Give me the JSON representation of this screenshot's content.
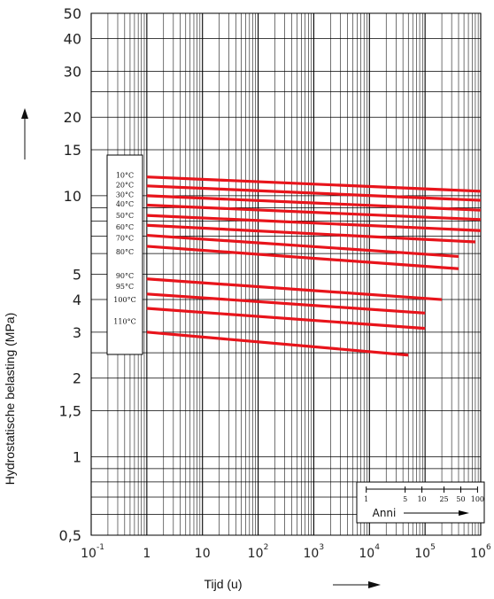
{
  "chart_data": {
    "type": "line",
    "xlabel": "Tijd (u)",
    "ylabel": "Hydrostatische belasting (MPa)",
    "xscale": "log",
    "yscale": "log",
    "xlim": [
      0.1,
      1000000
    ],
    "ylim": [
      0.5,
      50
    ],
    "grid": true,
    "x_ticks": [
      {
        "base": "10",
        "exp": "-1",
        "value": 0.1
      },
      {
        "base": "1",
        "exp": "",
        "value": 1
      },
      {
        "base": "10",
        "exp": "",
        "value": 10
      },
      {
        "base": "10",
        "exp": "2",
        "value": 100
      },
      {
        "base": "10",
        "exp": "3",
        "value": 1000
      },
      {
        "base": "10",
        "exp": "4",
        "value": 10000
      },
      {
        "base": "10",
        "exp": "5",
        "value": 100000
      },
      {
        "base": "10",
        "exp": "6",
        "value": 1000000
      }
    ],
    "y_ticks": [
      {
        "label": "50",
        "value": 50
      },
      {
        "label": "40",
        "value": 40
      },
      {
        "label": "30",
        "value": 30
      },
      {
        "label": "20",
        "value": 20
      },
      {
        "label": "15",
        "value": 15
      },
      {
        "label": "10",
        "value": 10
      },
      {
        "label": "5",
        "value": 5
      },
      {
        "label": "4",
        "value": 4
      },
      {
        "label": "3",
        "value": 3
      },
      {
        "label": "2",
        "value": 2
      },
      {
        "label": "1,5",
        "value": 1.5
      },
      {
        "label": "1",
        "value": 1
      },
      {
        "label": "0,5",
        "value": 0.5
      }
    ],
    "series_color": "#e8141b",
    "series": [
      {
        "name": "10°C",
        "x": [
          1,
          1000000
        ],
        "y": [
          11.8,
          10.4
        ]
      },
      {
        "name": "20°C",
        "x": [
          1,
          1000000
        ],
        "y": [
          10.9,
          9.6
        ]
      },
      {
        "name": "30°C",
        "x": [
          1,
          1000000
        ],
        "y": [
          10.0,
          8.8
        ]
      },
      {
        "name": "40°C",
        "x": [
          1,
          1000000
        ],
        "y": [
          9.2,
          8.1
        ]
      },
      {
        "name": "50°C",
        "x": [
          1,
          1000000
        ],
        "y": [
          8.4,
          7.35
        ]
      },
      {
        "name": "60°C",
        "x": [
          1,
          800000
        ],
        "y": [
          7.7,
          6.65
        ]
      },
      {
        "name": "70°C",
        "x": [
          1,
          400000
        ],
        "y": [
          7.05,
          5.85
        ]
      },
      {
        "name": "80°C",
        "x": [
          1,
          400000
        ],
        "y": [
          6.4,
          5.25
        ]
      },
      {
        "name": "90°C",
        "x": [
          1,
          200000
        ],
        "y": [
          4.8,
          4.0
        ]
      },
      {
        "name": "95°C",
        "x": [
          1,
          100000
        ],
        "y": [
          4.2,
          3.55
        ]
      },
      {
        "name": "100°C",
        "x": [
          1,
          100000
        ],
        "y": [
          3.7,
          3.1
        ]
      },
      {
        "name": "110°C",
        "x": [
          1,
          50000
        ],
        "y": [
          3.0,
          2.45
        ]
      }
    ],
    "label_box_entries": [
      {
        "name": "10°C",
        "y": 12.0
      },
      {
        "name": "20°C",
        "y": 11.0
      },
      {
        "name": "30°C",
        "y": 10.1
      },
      {
        "name": "40°C",
        "y": 9.3
      },
      {
        "name": "50°C",
        "y": 8.4
      },
      {
        "name": "60°C",
        "y": 7.6
      },
      {
        "name": "70°C",
        "y": 6.9
      },
      {
        "name": "80°C",
        "y": 6.1
      },
      {
        "name": "90°C",
        "y": 4.95
      },
      {
        "name": "95°C",
        "y": 4.5
      },
      {
        "name": "100°C",
        "y": 4.0
      },
      {
        "name": "110°C",
        "y": 3.3
      }
    ],
    "years_scale": {
      "label": "Anni",
      "ticks": [
        {
          "label": "1",
          "years": 1
        },
        {
          "label": "5",
          "years": 5
        },
        {
          "label": "10",
          "years": 10
        },
        {
          "label": "25",
          "years": 25
        },
        {
          "label": "50",
          "years": 50
        },
        {
          "label": "100",
          "years": 100
        }
      ]
    }
  }
}
